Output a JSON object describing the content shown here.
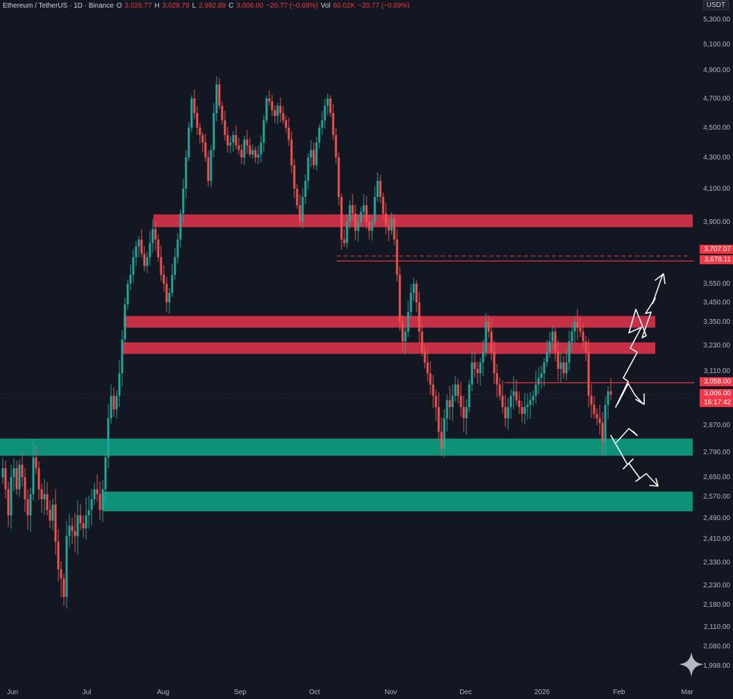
{
  "header": {
    "symbol": "Ethereum / TetherUS · 1D · Binance",
    "open_label": "O",
    "open": "3,026.77",
    "high_label": "H",
    "high": "3,029.79",
    "low_label": "L",
    "low": "2,992.89",
    "close_label": "C",
    "close": "3,006.00",
    "change": "−20.77 (−0.69%)",
    "vol_label": "Vol",
    "vol": "60.02K",
    "vol_change": "−20.77 (−0.69%)"
  },
  "currency_badge": "USDT",
  "price_tags": {
    "level_a": "3,707.07",
    "level_b": "3,678.11",
    "level_c": "3,058.00",
    "last": "3,006.00",
    "countdown": "16:17:42"
  },
  "colors": {
    "background": "#131722",
    "resistance_zone": "#d9334a",
    "support_zone": "#0e9e83",
    "bull_candle": "#26a69a",
    "bear_candle": "#ef5350",
    "arrow": "#ffffff"
  },
  "chart_data": {
    "type": "candlestick",
    "ylim": [
      1990,
      5340
    ],
    "y_ticks": [
      "5,300.00",
      "5,100.00",
      "4,900.00",
      "4,700.00",
      "4,500.00",
      "4,300.00",
      "4,100.00",
      "3,900.00",
      "3,550.00",
      "3,450.00",
      "3,350.00",
      "3,230.00",
      "3,110.00",
      "2,870.00",
      "2,790.00",
      "2,650.00",
      "2,570.00",
      "2,490.00",
      "2,410.00",
      "2,330.00",
      "2,230.00",
      "2,180.00",
      "2,110.00",
      "2,080.00",
      "1,998.00"
    ],
    "x_ticks": [
      "Jun",
      "Jul",
      "Aug",
      "Sep",
      "Oct",
      "Nov",
      "Dec",
      "2026",
      "Feb",
      "Mar"
    ],
    "price_path": [
      [
        0,
        2650
      ],
      [
        4,
        2700
      ],
      [
        8,
        2600
      ],
      [
        12,
        2500
      ],
      [
        16,
        2650
      ],
      [
        20,
        2700
      ],
      [
        24,
        2600
      ],
      [
        28,
        2720
      ],
      [
        32,
        2650
      ],
      [
        36,
        2560
      ],
      [
        40,
        2500
      ],
      [
        44,
        2580
      ],
      [
        48,
        2760
      ],
      [
        52,
        2700
      ],
      [
        56,
        2600
      ],
      [
        60,
        2560
      ],
      [
        64,
        2580
      ],
      [
        68,
        2520
      ],
      [
        72,
        2480
      ],
      [
        76,
        2540
      ],
      [
        80,
        2400
      ],
      [
        84,
        2300
      ],
      [
        88,
        2260
      ],
      [
        92,
        2200
      ],
      [
        96,
        2420
      ],
      [
        100,
        2460
      ],
      [
        104,
        2440
      ],
      [
        108,
        2420
      ],
      [
        112,
        2500
      ],
      [
        116,
        2470
      ],
      [
        120,
        2450
      ],
      [
        124,
        2500
      ],
      [
        128,
        2520
      ],
      [
        132,
        2560
      ],
      [
        136,
        2600
      ],
      [
        140,
        2580
      ],
      [
        144,
        2520
      ],
      [
        148,
        2600
      ],
      [
        152,
        2760
      ],
      [
        156,
        2900
      ],
      [
        160,
        3000
      ],
      [
        164,
        2940
      ],
      [
        168,
        3000
      ],
      [
        172,
        3100
      ],
      [
        176,
        3260
      ],
      [
        180,
        3440
      ],
      [
        184,
        3550
      ],
      [
        188,
        3600
      ],
      [
        192,
        3700
      ],
      [
        196,
        3760
      ],
      [
        200,
        3800
      ],
      [
        204,
        3720
      ],
      [
        208,
        3650
      ],
      [
        212,
        3700
      ],
      [
        216,
        3780
      ],
      [
        220,
        3860
      ],
      [
        224,
        3800
      ],
      [
        228,
        3700
      ],
      [
        232,
        3600
      ],
      [
        236,
        3550
      ],
      [
        240,
        3450
      ],
      [
        244,
        3500
      ],
      [
        248,
        3600
      ],
      [
        252,
        3700
      ],
      [
        256,
        3800
      ],
      [
        260,
        3950
      ],
      [
        264,
        4100
      ],
      [
        268,
        4300
      ],
      [
        272,
        4500
      ],
      [
        276,
        4700
      ],
      [
        280,
        4600
      ],
      [
        284,
        4500
      ],
      [
        288,
        4450
      ],
      [
        292,
        4400
      ],
      [
        296,
        4300
      ],
      [
        300,
        4150
      ],
      [
        304,
        4350
      ],
      [
        308,
        4600
      ],
      [
        312,
        4800
      ],
      [
        316,
        4650
      ],
      [
        320,
        4550
      ],
      [
        324,
        4450
      ],
      [
        328,
        4380
      ],
      [
        332,
        4400
      ],
      [
        336,
        4450
      ],
      [
        340,
        4380
      ],
      [
        344,
        4350
      ],
      [
        348,
        4300
      ],
      [
        352,
        4420
      ],
      [
        356,
        4380
      ],
      [
        360,
        4320
      ],
      [
        364,
        4350
      ],
      [
        368,
        4300
      ],
      [
        372,
        4320
      ],
      [
        376,
        4400
      ],
      [
        380,
        4550
      ],
      [
        384,
        4700
      ],
      [
        388,
        4680
      ],
      [
        392,
        4620
      ],
      [
        396,
        4580
      ],
      [
        400,
        4650
      ],
      [
        404,
        4600
      ],
      [
        408,
        4550
      ],
      [
        412,
        4500
      ],
      [
        416,
        4420
      ],
      [
        420,
        4250
      ],
      [
        424,
        4100
      ],
      [
        428,
        4000
      ],
      [
        432,
        3900
      ],
      [
        436,
        4050
      ],
      [
        440,
        4150
      ],
      [
        444,
        4300
      ],
      [
        448,
        4350
      ],
      [
        452,
        4250
      ],
      [
        456,
        4400
      ],
      [
        460,
        4500
      ],
      [
        464,
        4550
      ],
      [
        468,
        4650
      ],
      [
        472,
        4700
      ],
      [
        476,
        4600
      ],
      [
        480,
        4450
      ],
      [
        484,
        4300
      ],
      [
        488,
        4050
      ],
      [
        492,
        3800
      ],
      [
        496,
        3780
      ],
      [
        500,
        3900
      ],
      [
        504,
        4000
      ],
      [
        508,
        3950
      ],
      [
        512,
        3850
      ],
      [
        516,
        3900
      ],
      [
        520,
        3960
      ],
      [
        524,
        4000
      ],
      [
        528,
        3900
      ],
      [
        532,
        3850
      ],
      [
        536,
        3900
      ],
      [
        540,
        4050
      ],
      [
        544,
        4150
      ],
      [
        548,
        4050
      ],
      [
        552,
        3950
      ],
      [
        556,
        3880
      ],
      [
        560,
        3850
      ],
      [
        564,
        3920
      ],
      [
        568,
        3800
      ],
      [
        572,
        3600
      ],
      [
        576,
        3350
      ],
      [
        580,
        3250
      ],
      [
        584,
        3300
      ],
      [
        588,
        3400
      ],
      [
        592,
        3500
      ],
      [
        596,
        3550
      ],
      [
        600,
        3450
      ],
      [
        604,
        3300
      ],
      [
        608,
        3200
      ],
      [
        612,
        3150
      ],
      [
        616,
        3100
      ],
      [
        620,
        3050
      ],
      [
        624,
        3000
      ],
      [
        628,
        2950
      ],
      [
        632,
        2850
      ],
      [
        636,
        2800
      ],
      [
        640,
        2900
      ],
      [
        644,
        2980
      ],
      [
        648,
        2950
      ],
      [
        652,
        3000
      ],
      [
        656,
        3050
      ],
      [
        660,
        3000
      ],
      [
        664,
        2950
      ],
      [
        668,
        2900
      ],
      [
        672,
        2950
      ],
      [
        676,
        3050
      ],
      [
        680,
        3150
      ],
      [
        684,
        3120
      ],
      [
        688,
        3100
      ],
      [
        692,
        3150
      ],
      [
        696,
        3200
      ],
      [
        700,
        3350
      ],
      [
        704,
        3300
      ],
      [
        708,
        3200
      ],
      [
        712,
        3100
      ],
      [
        716,
        3050
      ],
      [
        720,
        3000
      ],
      [
        724,
        2950
      ],
      [
        728,
        2900
      ],
      [
        732,
        2950
      ],
      [
        736,
        3000
      ],
      [
        740,
        3020
      ],
      [
        744,
        2980
      ],
      [
        748,
        2950
      ],
      [
        752,
        2920
      ],
      [
        756,
        2950
      ],
      [
        760,
        2960
      ],
      [
        764,
        2980
      ],
      [
        768,
        3000
      ],
      [
        772,
        3050
      ],
      [
        776,
        3080
      ],
      [
        780,
        3100
      ],
      [
        784,
        3150
      ],
      [
        788,
        3200
      ],
      [
        792,
        3250
      ],
      [
        796,
        3300
      ],
      [
        800,
        3200
      ],
      [
        804,
        3120
      ],
      [
        808,
        3150
      ],
      [
        812,
        3100
      ],
      [
        816,
        3150
      ],
      [
        820,
        3250
      ],
      [
        824,
        3300
      ],
      [
        828,
        3350
      ],
      [
        832,
        3320
      ],
      [
        836,
        3300
      ],
      [
        840,
        3250
      ],
      [
        844,
        3200
      ],
      [
        848,
        3000
      ],
      [
        852,
        2960
      ],
      [
        856,
        2920
      ],
      [
        860,
        2900
      ],
      [
        864,
        2880
      ],
      [
        868,
        2820
      ],
      [
        872,
        2960
      ],
      [
        876,
        3020
      ],
      [
        880,
        3006
      ]
    ]
  }
}
